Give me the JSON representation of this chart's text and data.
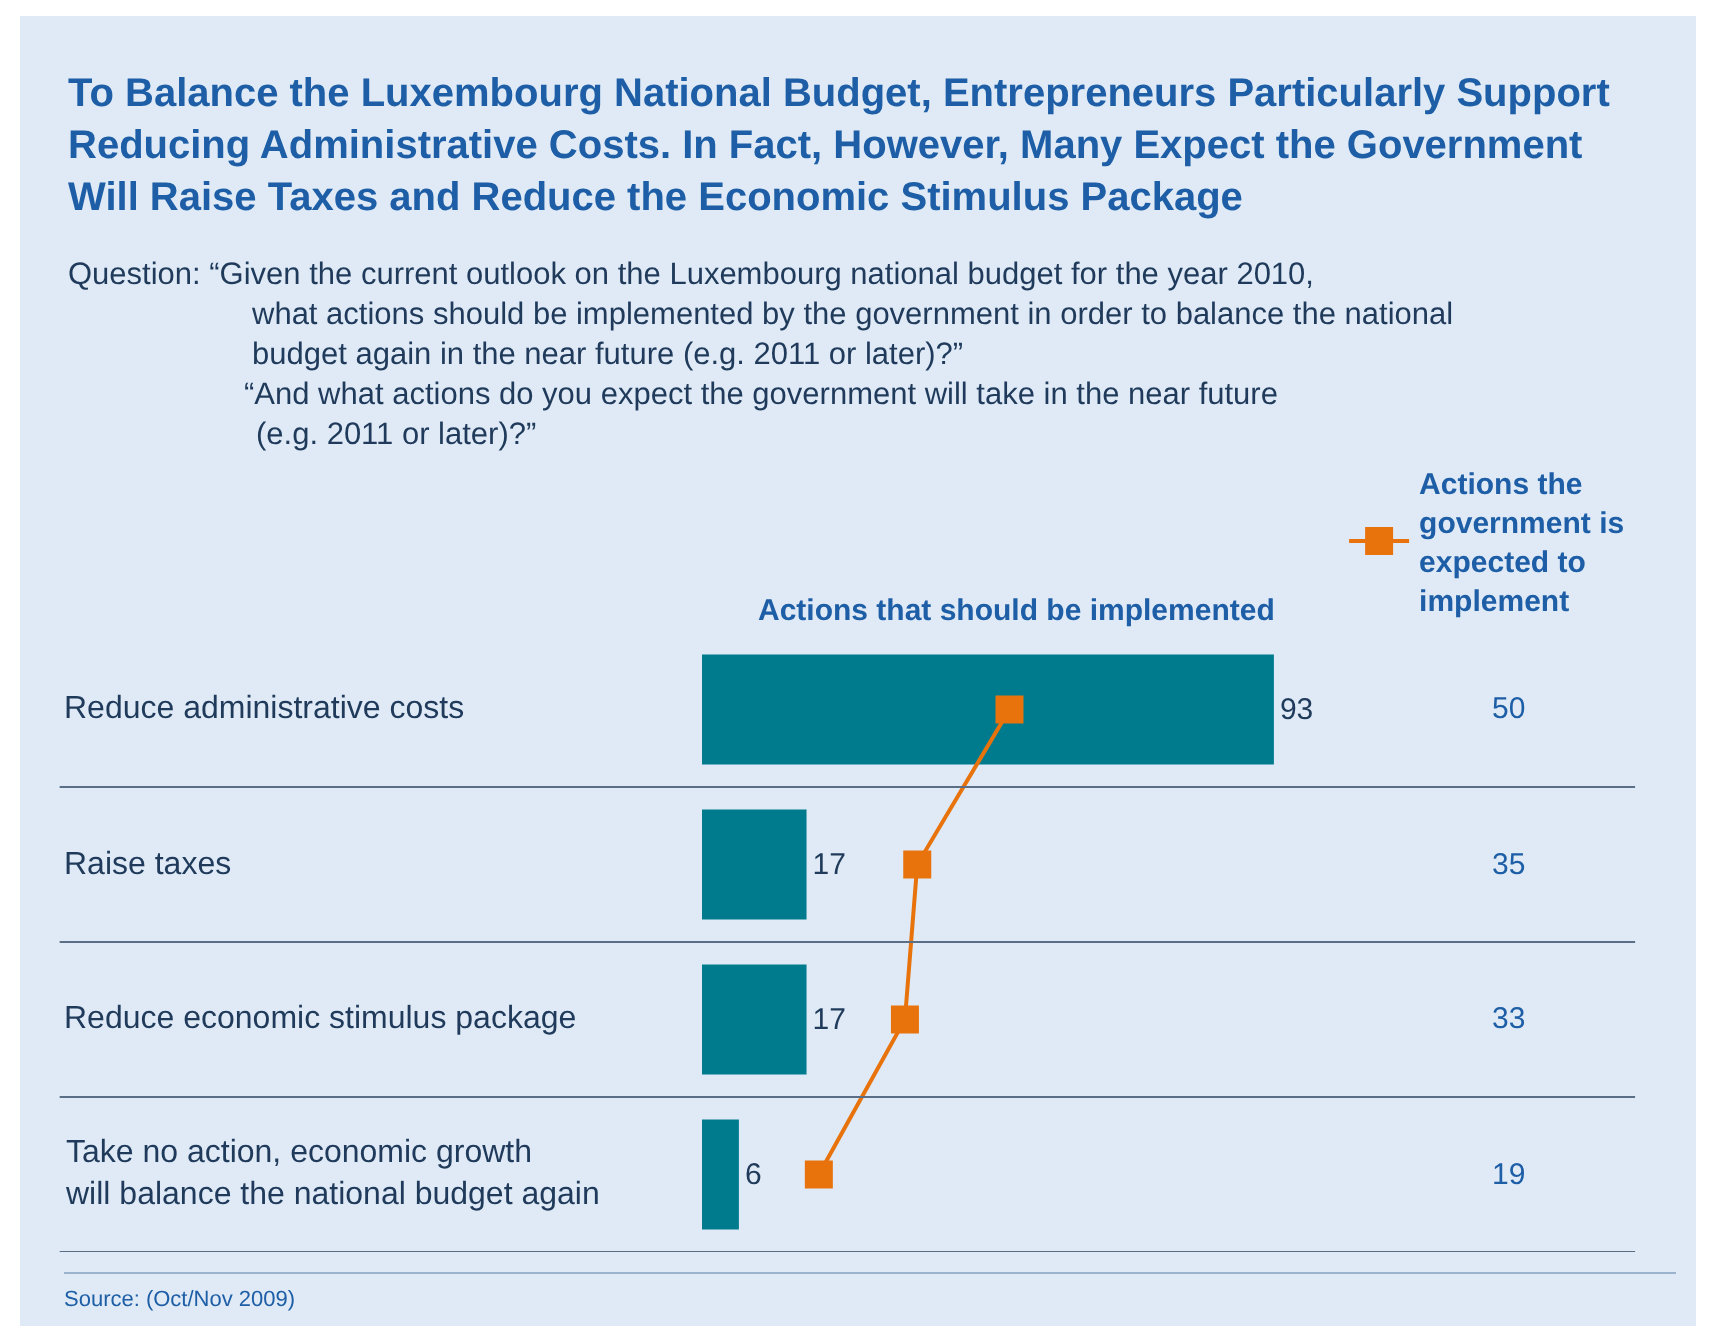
{
  "chart_data": {
    "type": "bar",
    "orientation": "horizontal",
    "title": "To Balance the Luxembourg National Budget, Entrepreneurs Particularly Support Reducing Administrative Costs.  In Fact, However, Many Expect the Government Will Raise Taxes and Reduce the Economic Stimulus Package",
    "subtitle": "Question: “Given the current outlook on the Luxembourg national budget for the year 2010,\nwhat actions should be implemented by the government in order to balance the national\nbudget again in the near future (e.g. 2011 or later)?”\n“And what actions do you expect the government will take in the near future\n(e.g. 2011 or later)?”",
    "categories": [
      "Reduce administrative costs",
      "Raise taxes",
      "Reduce economic stimulus package",
      "Take no action, economic growth\nwill balance the national budget again"
    ],
    "series": [
      {
        "name": "Actions that should be implemented",
        "type": "bar",
        "color": "#007b8e",
        "values": [
          93,
          17,
          17,
          6
        ],
        "value_labels": [
          "93",
          "17",
          "17",
          "6"
        ]
      },
      {
        "name": "Actions the government is expected to implement",
        "type": "line",
        "marker": "square",
        "color": "#e8730c",
        "values": [
          50,
          35,
          33,
          19
        ],
        "value_labels": [
          "50",
          "35",
          "33",
          "19"
        ]
      }
    ],
    "grid": false,
    "legend": "top right",
    "annotations": [
      "Source: (Oct/Nov 2009)"
    ]
  }
}
